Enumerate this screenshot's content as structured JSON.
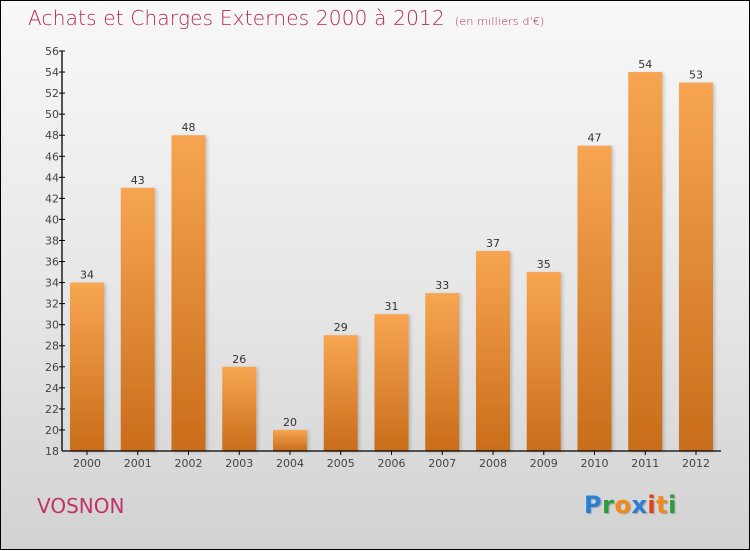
{
  "header": {
    "title": "Achats et Charges Externes 2000 à 2012",
    "unit": "(en milliers d'€)"
  },
  "footer": {
    "commune": "VOSNON",
    "logo": {
      "letters": [
        "P",
        "r",
        "o",
        "x",
        "i",
        "t",
        "i"
      ],
      "colors": [
        "#2a7fd4",
        "#2e9a3a",
        "#f08a1c",
        "#2a7fd4",
        "#e0401c",
        "#f08a1c",
        "#2e9a3a"
      ]
    }
  },
  "colors": {
    "title": "#b5285a",
    "bar_top": "#f7a552",
    "bar_bottom": "#c96d1a",
    "axis": "#000000"
  },
  "chart_data": {
    "type": "bar",
    "title": "Achats et Charges Externes 2000 à 2012",
    "subtitle": "(en milliers d'€)",
    "xlabel": "",
    "ylabel": "",
    "categories": [
      "2000",
      "2001",
      "2002",
      "2003",
      "2004",
      "2005",
      "2006",
      "2007",
      "2008",
      "2009",
      "2010",
      "2011",
      "2012"
    ],
    "values": [
      34,
      43,
      48,
      26,
      20,
      29,
      31,
      33,
      37,
      35,
      47,
      54,
      53
    ],
    "ylim": [
      18,
      56
    ],
    "yticks": [
      18,
      20,
      22,
      24,
      26,
      28,
      30,
      32,
      34,
      36,
      38,
      40,
      42,
      44,
      46,
      48,
      50,
      52,
      54,
      56
    ],
    "grid": false,
    "legend": "none",
    "data_labels": true
  }
}
